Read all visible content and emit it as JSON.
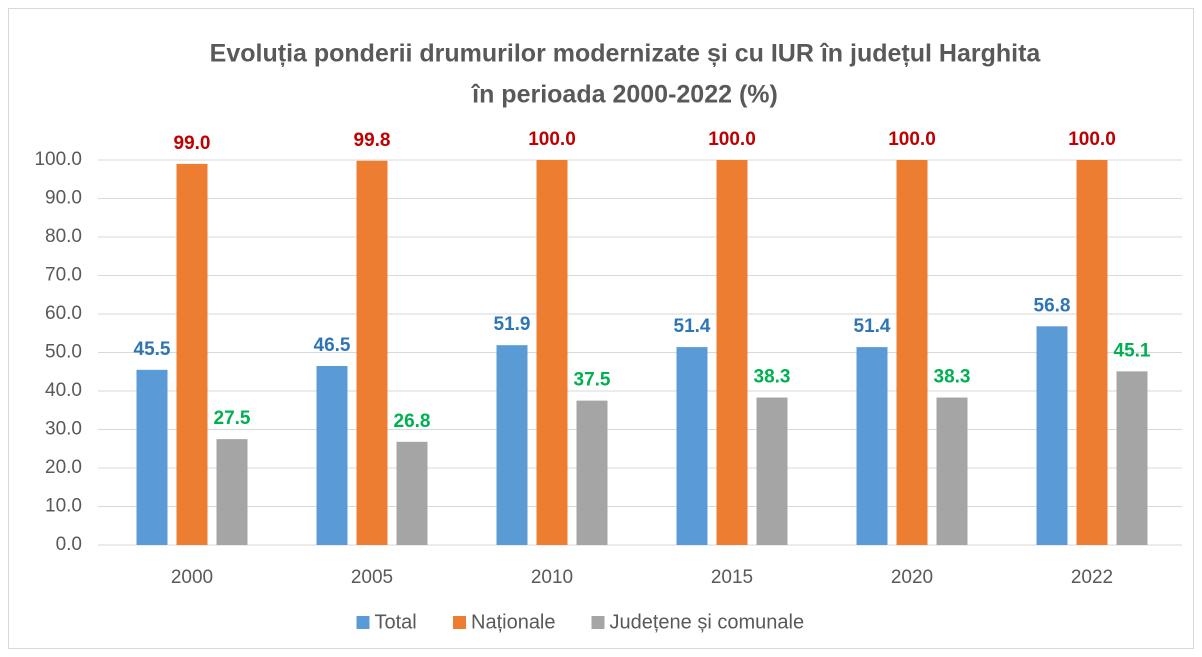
{
  "chart_data": {
    "type": "bar",
    "title": [
      "Evoluția ponderii drumurilor modernizate și cu IUR în județul Harghita",
      "în perioada 2000-2022 (%)"
    ],
    "categories": [
      "2000",
      "2005",
      "2010",
      "2015",
      "2020",
      "2022"
    ],
    "series": [
      {
        "name": "Total",
        "color": "#5b9bd5",
        "label_color": "#2e75b6",
        "values": [
          45.5,
          46.5,
          51.9,
          51.4,
          51.4,
          56.8
        ],
        "value_labels": [
          "45.5",
          "46.5",
          "51.9",
          "51.4",
          "51.4",
          "56.8"
        ]
      },
      {
        "name": "Naționale",
        "color": "#ed7d31",
        "label_color": "#c00000",
        "values": [
          99.0,
          99.8,
          100.0,
          100.0,
          100.0,
          100.0
        ],
        "value_labels": [
          "99.0",
          "99.8",
          "100.0",
          "100.0",
          "100.0",
          "100.0"
        ]
      },
      {
        "name": "Județene și comunale",
        "color": "#a5a5a5",
        "label_color": "#00b050",
        "values": [
          27.5,
          26.8,
          37.5,
          38.3,
          38.3,
          45.1
        ],
        "value_labels": [
          "27.5",
          "26.8",
          "37.5",
          "38.3",
          "38.3",
          "45.1"
        ]
      }
    ],
    "ylim": [
      0,
      100
    ],
    "yticks": [
      {
        "value": 0,
        "label": "0.0"
      },
      {
        "value": 10,
        "label": "10.0"
      },
      {
        "value": 20,
        "label": "20.0"
      },
      {
        "value": 30,
        "label": "30.0"
      },
      {
        "value": 40,
        "label": "40.0"
      },
      {
        "value": 50,
        "label": "50.0"
      },
      {
        "value": 60,
        "label": "60.0"
      },
      {
        "value": 70,
        "label": "70.0"
      },
      {
        "value": 80,
        "label": "80.0"
      },
      {
        "value": 90,
        "label": "90.0"
      },
      {
        "value": 100,
        "label": "100.0"
      }
    ],
    "grid": true,
    "legend": "bottom"
  }
}
